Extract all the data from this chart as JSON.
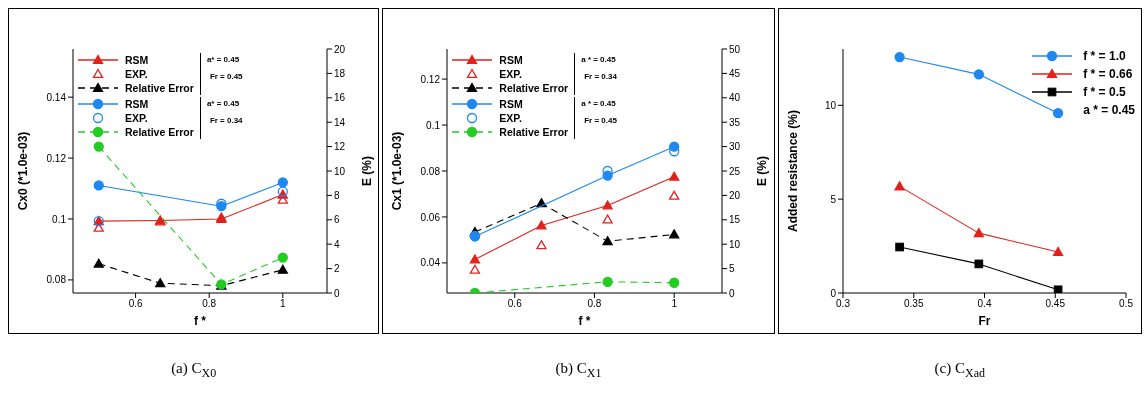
{
  "chart_data": [
    {
      "type": "line",
      "title": "(a) C$_{X0}$",
      "xlabel": "f *",
      "ylabel": "Cx0 (*1.0e-03)",
      "y2label": "E (%)",
      "xlim": [
        0.43,
        1.12
      ],
      "xticks": [
        0.6,
        0.8,
        1
      ],
      "ylim": [
        0.0757,
        0.1558
      ],
      "yticks": [
        0.08,
        0.1,
        0.12,
        0.14
      ],
      "y2lim": [
        0,
        20
      ],
      "y2ticks": [
        0,
        2,
        4,
        6,
        8,
        10,
        12,
        14,
        16,
        18,
        20
      ],
      "legend": "top left",
      "grid": false,
      "x": [
        0.5,
        0.667,
        0.833,
        1
      ],
      "annotations": [
        "a* = 0.45",
        "Fr = 0.45",
        "a* = 0.45",
        "Fr = 0.34"
      ],
      "series": [
        {
          "name": "RSM",
          "type": "line",
          "color": "#e3211c",
          "marker": "triangle",
          "line_style": "solid",
          "values": [
            0.0993,
            0.0995,
            0.1,
            0.108
          ]
        },
        {
          "name": "EXP.",
          "type": "scatter",
          "color": "#e3211c",
          "marker": "triangle",
          "values": [
            0.0971,
            0.0992,
            0.1005,
            0.1063
          ]
        },
        {
          "name": "Relative Error",
          "type": "line",
          "color": "#000000",
          "marker": "triangle",
          "line_style": "dashed",
          "axis": "y2",
          "values": [
            2.4,
            0.8,
            0.6,
            1.9
          ]
        },
        {
          "name": "RSM",
          "type": "line",
          "color": "#1e88f0",
          "marker": "circle",
          "line_style": "solid",
          "x": [
            0.5,
            0.833,
            1
          ],
          "values": [
            0.111,
            0.1042,
            0.112
          ]
        },
        {
          "name": "EXP.",
          "type": "scatter",
          "color": "#1e88f0",
          "marker": "circle",
          "x": [
            0.5,
            0.833,
            1
          ],
          "values": [
            0.0993,
            0.105,
            0.109
          ]
        },
        {
          "name": "Relative Error",
          "type": "line",
          "color": "#22cc22",
          "marker": "circle",
          "line_style": "dashed",
          "axis": "y2",
          "x": [
            0.5,
            0.833,
            1
          ],
          "values": [
            12.0,
            0.7,
            2.9
          ]
        }
      ]
    },
    {
      "type": "line",
      "title": "(b) C$_{X1}$",
      "xlabel": "f *",
      "ylabel": "Cx1 (*1.0e-03)",
      "y2label": "E (%)",
      "xlim": [
        0.43,
        1.12
      ],
      "xticks": [
        0.6,
        0.8,
        1
      ],
      "ylim": [
        0.0269,
        0.1331
      ],
      "yticks": [
        0.04,
        0.06,
        0.08,
        0.1,
        0.12
      ],
      "y2lim": [
        0,
        50
      ],
      "y2ticks": [
        0,
        5,
        10,
        15,
        20,
        25,
        30,
        35,
        40,
        45,
        50
      ],
      "legend": "top left",
      "grid": false,
      "x": [
        0.5,
        0.667,
        0.833,
        1
      ],
      "annotations": [
        "a * = 0.45",
        "Fr = 0.34",
        "a * = 0.45",
        "Fr = 0.45"
      ],
      "series": [
        {
          "name": "RSM",
          "type": "line",
          "color": "#e3211c",
          "marker": "triangle",
          "line_style": "solid",
          "values": [
            0.0415,
            0.0563,
            0.065,
            0.0775
          ]
        },
        {
          "name": "EXP.",
          "type": "scatter",
          "color": "#e3211c",
          "marker": "triangle",
          "values": [
            0.037,
            0.0477,
            0.0589,
            0.0692
          ]
        },
        {
          "name": "Relative Error",
          "type": "line",
          "color": "#000000",
          "marker": "triangle",
          "line_style": "dashed",
          "axis": "y2",
          "values": [
            12.5,
            18.4,
            10.6,
            12.0
          ]
        },
        {
          "name": "RSM",
          "type": "line",
          "color": "#1e88f0",
          "marker": "circle",
          "line_style": "solid",
          "x": [
            0.5,
            0.833,
            1
          ],
          "values": [
            0.0515,
            0.078,
            0.0906
          ]
        },
        {
          "name": "EXP.",
          "type": "scatter",
          "color": "#1e88f0",
          "marker": "circle",
          "x": [
            0.5,
            0.833,
            1
          ],
          "values": [
            0.0518,
            0.08,
            0.0886
          ]
        },
        {
          "name": "Relative Error",
          "type": "line",
          "color": "#22cc22",
          "marker": "circle",
          "line_style": "dashed",
          "axis": "y2",
          "x": [
            0.5,
            0.833,
            1
          ],
          "values": [
            0,
            2.3,
            2.1
          ]
        }
      ]
    },
    {
      "type": "line",
      "title": "(c) C$_{X}$$_{ad}$",
      "xlabel": "Fr",
      "ylabel": "Added resistance  (%)",
      "xlim": [
        0.3,
        0.5
      ],
      "xticks": [
        0.3,
        0.35,
        0.4,
        0.45,
        0.5
      ],
      "ylim": [
        0,
        13
      ],
      "yticks": [
        0,
        5,
        10
      ],
      "legend": "top right",
      "grid": false,
      "x": [
        0.34,
        0.396,
        0.452
      ],
      "annotations": [
        "a * = 0.45"
      ],
      "series": [
        {
          "name": "f * = 1.0",
          "color": "#1e88f0",
          "marker": "circle",
          "line_style": "solid",
          "values": [
            12.57,
            11.65,
            9.58
          ]
        },
        {
          "name": "f * = 0.66",
          "color": "#e3211c",
          "marker": "triangle",
          "line_style": "solid",
          "values": [
            5.68,
            3.19,
            2.18
          ]
        },
        {
          "name": "f * = 0.5",
          "color": "#000000",
          "marker": "square",
          "line_style": "solid",
          "values": [
            2.45,
            1.55,
            0.17
          ]
        }
      ]
    }
  ]
}
